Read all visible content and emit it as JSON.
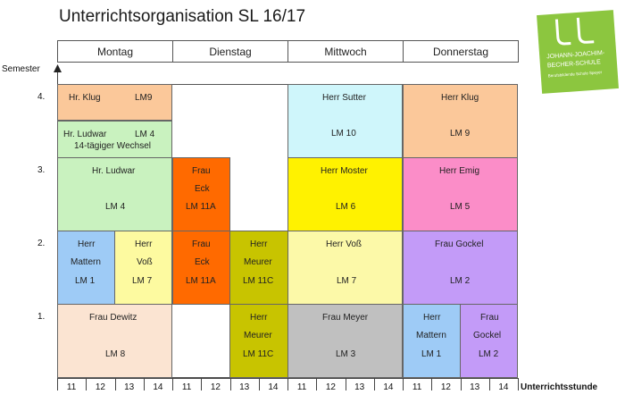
{
  "title": "Unterrichtsorganisation SL 16/17",
  "y_axis_label": "Semester",
  "x_axis_label": "Unterrichtsstunde",
  "days": [
    "Montag",
    "Dienstag",
    "Mittwoch",
    "Donnerstag"
  ],
  "semesters": [
    "4.",
    "3.",
    "2.",
    "1."
  ],
  "hours": [
    "11",
    "12",
    "13",
    "14",
    "11",
    "12",
    "13",
    "14",
    "11",
    "12",
    "13",
    "14",
    "11",
    "12",
    "13",
    "14"
  ],
  "logo": {
    "line1": "JOHANN-JOACHIM-",
    "line2": "BECHER-SCHULE",
    "line3": "Berufsbildende Schule Speyer"
  },
  "colors": {
    "orange_light": "#fbc89a",
    "green_light": "#c9f2bf",
    "cyan_light": "#cff6fb",
    "orange_dark": "#ff6a00",
    "yellow": "#fff200",
    "pink": "#fb8dc8",
    "blue_light": "#9ecbf6",
    "yellow_light": "#fdfaa0",
    "olive": "#c8c400",
    "yellow_pale": "#fcf9a8",
    "purple": "#c39bf8",
    "peach": "#fbe4d2",
    "gray": "#c0c0c0",
    "logo_green": "#8cc63f"
  },
  "cells": {
    "c01": {
      "name": "Hr. Klug",
      "lm": "LM9"
    },
    "c02": {
      "name": "Hr. Ludwar",
      "lm": "LM 4",
      "note": "14-tägiger Wechsel"
    },
    "c03": {
      "name": "Herr Sutter",
      "lm": "LM 10"
    },
    "c04": {
      "name": "Herr Klug",
      "lm": "LM 9"
    },
    "c05": {
      "name": "Hr. Ludwar",
      "lm": "LM 4"
    },
    "c06": {
      "l1": "Frau",
      "l2": "Eck",
      "lm": "LM 11A"
    },
    "c07": {
      "name": "Herr Moster",
      "lm": "LM 6"
    },
    "c08": {
      "name": "Herr Emig",
      "lm": "LM 5"
    },
    "c09": {
      "l1": "Herr",
      "l2": "Mattern",
      "lm": "LM 1"
    },
    "c10": {
      "l1": "Herr",
      "l2": "Voß",
      "lm": "LM 7"
    },
    "c11": {
      "l1": "Frau",
      "l2": "Eck",
      "lm": "LM 11A"
    },
    "c12": {
      "l1": "Herr",
      "l2": "Meurer",
      "lm": "LM 11C"
    },
    "c13": {
      "name": "Herr Voß",
      "lm": "LM 7"
    },
    "c14": {
      "name": "Frau Gockel",
      "lm": "LM 2"
    },
    "c15": {
      "name": "Frau Dewitz",
      "lm": "LM 8"
    },
    "c16": {
      "l1": "Herr",
      "l2": "Meurer",
      "lm": "LM 11C"
    },
    "c17": {
      "name": "Frau Meyer",
      "lm": "LM 3"
    },
    "c18": {
      "l1": "Herr",
      "l2": "Mattern",
      "lm": "LM 1"
    },
    "c19": {
      "l1": "Frau",
      "l2": "Gockel",
      "lm": "LM 2"
    }
  }
}
